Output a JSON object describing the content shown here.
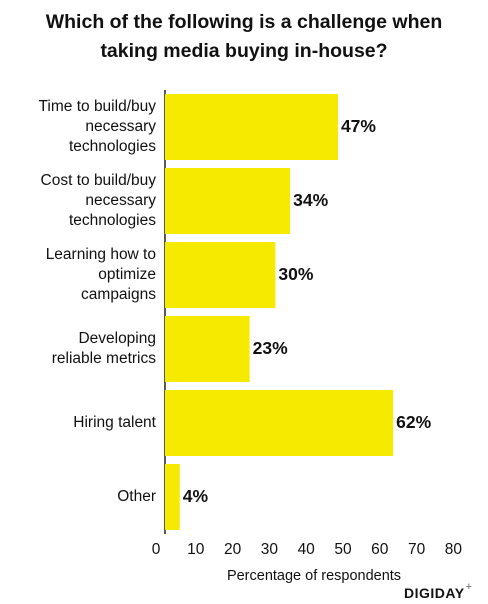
{
  "chart_data": {
    "type": "bar",
    "orientation": "horizontal",
    "title": "Which of the following is a challenge when taking media buying in-house?",
    "categories": [
      "Time to build/buy necessary technologies",
      "Cost to build/buy necessary technologies",
      "Learning how to optimize campaigns",
      "Developing reliable metrics",
      "Hiring talent",
      "Other"
    ],
    "category_lines": [
      [
        "Time to build/buy",
        "necessary",
        "technologies"
      ],
      [
        "Cost to build/buy",
        "necessary",
        "technologies"
      ],
      [
        "Learning how to",
        "optimize",
        "campaigns"
      ],
      [
        "Developing",
        "reliable metrics"
      ],
      [
        "Hiring talent"
      ],
      [
        "Other"
      ]
    ],
    "values": [
      47,
      34,
      30,
      23,
      62,
      4
    ],
    "value_labels": [
      "47%",
      "34%",
      "30%",
      "23%",
      "62%",
      "4%"
    ],
    "xlabel": "Percentage of respondents",
    "ylabel": "",
    "xlim": [
      0,
      80
    ],
    "xticks": [
      0,
      10,
      20,
      30,
      40,
      50,
      60,
      70,
      80
    ],
    "xtick_labels": [
      "0",
      "10",
      "20",
      "30",
      "40",
      "50",
      "60",
      "70",
      "80"
    ],
    "bar_color": "#f5ea00",
    "grid": false,
    "legend": "none"
  },
  "brand": {
    "name": "DIGIDAY",
    "mark": "+"
  }
}
